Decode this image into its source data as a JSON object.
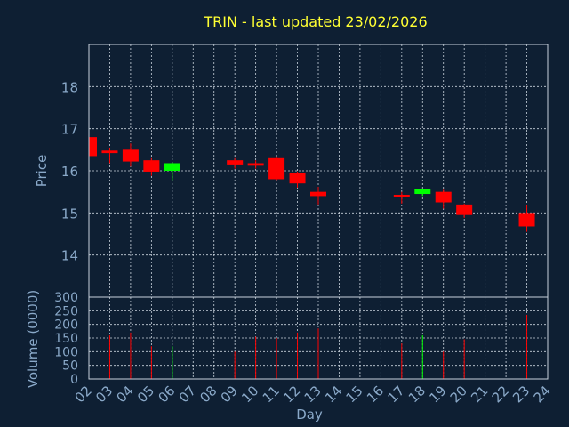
{
  "chart_data": {
    "type": "candlestick",
    "title": "TRIN - last updated 23/02/2026",
    "xlabel": "Day",
    "x_ticks": [
      "02",
      "03",
      "04",
      "05",
      "06",
      "07",
      "08",
      "09",
      "10",
      "11",
      "12",
      "13",
      "14",
      "15",
      "16",
      "17",
      "18",
      "19",
      "20",
      "21",
      "22",
      "23",
      "24"
    ],
    "price_panel": {
      "ylabel": "Price",
      "ylim": [
        13.0,
        19.0
      ],
      "y_ticks": [
        14,
        15,
        16,
        17,
        18
      ],
      "grid": true
    },
    "volume_panel": {
      "ylabel": "Volume (0000)",
      "ylim": [
        0,
        300
      ],
      "y_ticks": [
        0,
        50,
        100,
        150,
        200,
        250,
        300
      ],
      "grid": true
    },
    "colors": {
      "up": "#00ff00",
      "down": "#ff0000",
      "background": "#0e1f33",
      "title": "#ffff33",
      "axis_text": "#8aa9c9"
    },
    "candles": [
      {
        "day": 2,
        "open": 16.8,
        "high": 16.85,
        "low": 16.35,
        "close": 16.35,
        "volume": 0
      },
      {
        "day": 3,
        "open": 16.48,
        "high": 16.55,
        "low": 16.18,
        "close": 16.42,
        "volume": 160
      },
      {
        "day": 4,
        "open": 16.5,
        "high": 16.65,
        "low": 16.1,
        "close": 16.22,
        "volume": 170
      },
      {
        "day": 5,
        "open": 16.25,
        "high": 16.3,
        "low": 15.88,
        "close": 15.98,
        "volume": 120
      },
      {
        "day": 6,
        "open": 16.0,
        "high": 16.2,
        "low": 15.78,
        "close": 16.18,
        "volume": 120
      },
      {
        "day": 9,
        "open": 16.25,
        "high": 16.3,
        "low": 16.05,
        "close": 16.15,
        "volume": 100
      },
      {
        "day": 10,
        "open": 16.18,
        "high": 16.25,
        "low": 16.05,
        "close": 16.12,
        "volume": 155
      },
      {
        "day": 11,
        "open": 16.3,
        "high": 16.32,
        "low": 15.78,
        "close": 15.8,
        "volume": 150
      },
      {
        "day": 12,
        "open": 15.95,
        "high": 15.98,
        "low": 15.6,
        "close": 15.7,
        "volume": 170
      },
      {
        "day": 13,
        "open": 15.5,
        "high": 15.62,
        "low": 15.2,
        "close": 15.4,
        "volume": 185
      },
      {
        "day": 17,
        "open": 15.43,
        "high": 15.5,
        "low": 15.22,
        "close": 15.37,
        "volume": 130
      },
      {
        "day": 18,
        "open": 15.45,
        "high": 15.58,
        "low": 15.4,
        "close": 15.56,
        "volume": 160
      },
      {
        "day": 19,
        "open": 15.5,
        "high": 15.55,
        "low": 15.1,
        "close": 15.25,
        "volume": 100
      },
      {
        "day": 20,
        "open": 15.2,
        "high": 15.22,
        "low": 14.88,
        "close": 14.95,
        "volume": 145
      },
      {
        "day": 23,
        "open": 15.0,
        "high": 15.18,
        "low": 14.55,
        "close": 14.68,
        "volume": 235
      }
    ]
  }
}
